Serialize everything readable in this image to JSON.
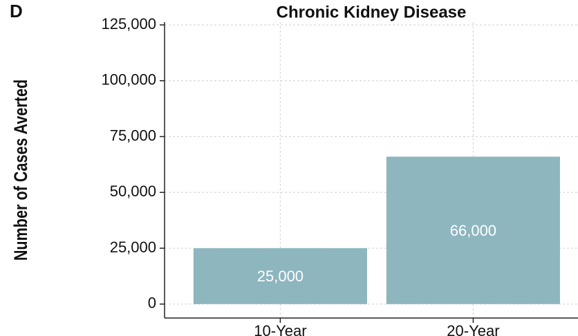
{
  "chart_data": {
    "type": "bar",
    "panel_label": "D",
    "title": "Chronic Kidney Disease",
    "ylabel": "Number of Cases Averted",
    "categories": [
      "10-Year",
      "20-Year"
    ],
    "values": [
      25000,
      66000
    ],
    "value_labels": [
      "25,000",
      "66,000"
    ],
    "color": "#8db6bf",
    "ylim": [
      -6250,
      125000
    ],
    "yticks": [
      0,
      {
        "value": 25000,
        "label": "25,000"
      },
      {
        "value": 50000,
        "label": "50,000"
      },
      {
        "value": 75000,
        "label": "75,000"
      },
      {
        "value": 100000,
        "label": "100,000"
      },
      {
        "value": 125000,
        "label": "125,000"
      }
    ],
    "grid": true
  }
}
